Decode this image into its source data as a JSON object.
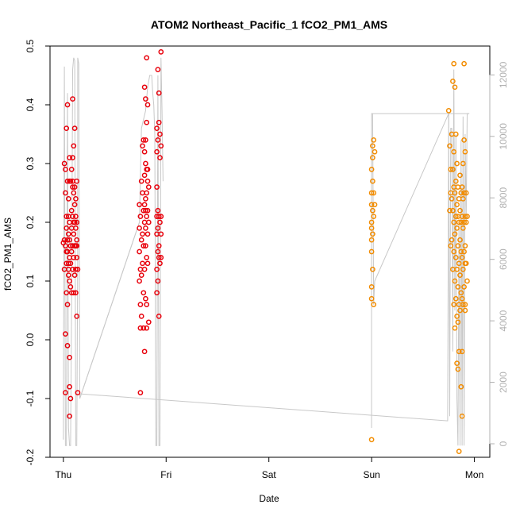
{
  "chart_data": {
    "type": "scatter",
    "title": "ATOM2 Northeast_Pacific_1 fCO2_PM1_AMS",
    "xlabel": "Date",
    "ylabel": "fCO2_PM1_AMS",
    "x_tick_labels": [
      "Thu",
      "Fri",
      "Sat",
      "Sun",
      "Mon"
    ],
    "x_tick_days": [
      0,
      1,
      2,
      3,
      4
    ],
    "xlim_days": [
      -0.13,
      4.15
    ],
    "ylim": [
      -0.2,
      0.5
    ],
    "y_ticks": [
      -0.2,
      -0.1,
      0.0,
      0.1,
      0.2,
      0.3,
      0.4,
      0.5
    ],
    "y_tick_labels": [
      "-0.2",
      "-0.1",
      "0.0",
      "0.1",
      "0.2",
      "0.3",
      "0.4",
      "0.5"
    ],
    "y2lim": [
      0,
      12500
    ],
    "y2_ticks": [
      0,
      2000,
      4000,
      6000,
      8000,
      10000,
      12000
    ],
    "y2_tick_labels": [
      "0",
      "2000",
      "4000",
      "6000",
      "8000",
      "10000",
      "12000"
    ],
    "grid": false,
    "colors": {
      "red": "#e8000b",
      "orange": "#f28c00",
      "line": "#c8c8c8",
      "axis": "#000000",
      "axis2": "#b0b0b0"
    },
    "series_red": {
      "points": [
        [
          0.0,
          0.165
        ],
        [
          0.01,
          0.3
        ],
        [
          0.01,
          0.17
        ],
        [
          0.01,
          0.12
        ],
        [
          0.02,
          0.25
        ],
        [
          0.02,
          0.16
        ],
        [
          0.02,
          0.29
        ],
        [
          0.02,
          0.01
        ],
        [
          0.02,
          -0.09
        ],
        [
          0.03,
          0.36
        ],
        [
          0.03,
          0.21
        ],
        [
          0.03,
          0.19
        ],
        [
          0.03,
          0.15
        ],
        [
          0.03,
          0.13
        ],
        [
          0.03,
          0.08
        ],
        [
          0.04,
          0.4
        ],
        [
          0.04,
          0.27
        ],
        [
          0.04,
          0.17
        ],
        [
          0.04,
          0.15
        ],
        [
          0.04,
          0.06
        ],
        [
          0.04,
          -0.01
        ],
        [
          0.05,
          0.24
        ],
        [
          0.05,
          0.21
        ],
        [
          0.05,
          0.18
        ],
        [
          0.05,
          0.13
        ],
        [
          0.05,
          0.12
        ],
        [
          0.05,
          0.11
        ],
        [
          0.06,
          0.31
        ],
        [
          0.06,
          0.27
        ],
        [
          0.06,
          0.2
        ],
        [
          0.06,
          0.17
        ],
        [
          0.06,
          0.14
        ],
        [
          0.06,
          0.1
        ],
        [
          0.06,
          -0.03
        ],
        [
          0.06,
          -0.08
        ],
        [
          0.06,
          -0.13
        ],
        [
          0.07,
          0.27
        ],
        [
          0.07,
          0.16
        ],
        [
          0.07,
          0.13
        ],
        [
          0.07,
          0.09
        ],
        [
          0.07,
          -0.1
        ],
        [
          0.08,
          0.29
        ],
        [
          0.08,
          0.22
        ],
        [
          0.08,
          0.19
        ],
        [
          0.08,
          0.15
        ],
        [
          0.08,
          0.08
        ],
        [
          0.09,
          0.41
        ],
        [
          0.09,
          0.31
        ],
        [
          0.09,
          0.27
        ],
        [
          0.09,
          0.26
        ],
        [
          0.09,
          0.21
        ],
        [
          0.09,
          0.16
        ],
        [
          0.09,
          0.12
        ],
        [
          0.1,
          0.33
        ],
        [
          0.1,
          0.25
        ],
        [
          0.1,
          0.2
        ],
        [
          0.1,
          0.18
        ],
        [
          0.1,
          0.14
        ],
        [
          0.1,
          0.08
        ],
        [
          0.11,
          0.36
        ],
        [
          0.11,
          0.26
        ],
        [
          0.11,
          0.23
        ],
        [
          0.11,
          0.2
        ],
        [
          0.11,
          0.16
        ],
        [
          0.11,
          0.11
        ],
        [
          0.12,
          0.24
        ],
        [
          0.12,
          0.21
        ],
        [
          0.12,
          0.19
        ],
        [
          0.12,
          0.16
        ],
        [
          0.12,
          0.12
        ],
        [
          0.12,
          0.08
        ],
        [
          0.13,
          0.27
        ],
        [
          0.13,
          0.2
        ],
        [
          0.13,
          0.17
        ],
        [
          0.13,
          0.16
        ],
        [
          0.13,
          0.14
        ],
        [
          0.13,
          0.04
        ],
        [
          0.14,
          0.12
        ],
        [
          0.14,
          -0.09
        ],
        [
          0.74,
          0.23
        ],
        [
          0.74,
          0.19
        ],
        [
          0.74,
          0.15
        ],
        [
          0.74,
          0.1
        ],
        [
          0.75,
          0.21
        ],
        [
          0.75,
          0.12
        ],
        [
          0.75,
          0.06
        ],
        [
          0.75,
          0.02
        ],
        [
          0.75,
          -0.09
        ],
        [
          0.76,
          0.27
        ],
        [
          0.76,
          0.17
        ],
        [
          0.76,
          0.11
        ],
        [
          0.76,
          0.04
        ],
        [
          0.77,
          0.33
        ],
        [
          0.77,
          0.25
        ],
        [
          0.77,
          0.18
        ],
        [
          0.77,
          0.13
        ],
        [
          0.78,
          0.34
        ],
        [
          0.78,
          0.22
        ],
        [
          0.78,
          0.16
        ],
        [
          0.78,
          0.08
        ],
        [
          0.78,
          0.02
        ],
        [
          0.79,
          0.43
        ],
        [
          0.79,
          0.32
        ],
        [
          0.79,
          0.28
        ],
        [
          0.79,
          0.23
        ],
        [
          0.79,
          0.2
        ],
        [
          0.79,
          0.12
        ],
        [
          0.79,
          -0.02
        ],
        [
          0.8,
          0.41
        ],
        [
          0.8,
          0.34
        ],
        [
          0.8,
          0.3
        ],
        [
          0.8,
          0.24
        ],
        [
          0.8,
          0.22
        ],
        [
          0.8,
          0.19
        ],
        [
          0.8,
          0.16
        ],
        [
          0.8,
          0.07
        ],
        [
          0.81,
          0.48
        ],
        [
          0.81,
          0.37
        ],
        [
          0.81,
          0.29
        ],
        [
          0.81,
          0.25
        ],
        [
          0.81,
          0.21
        ],
        [
          0.81,
          0.14
        ],
        [
          0.81,
          0.06
        ],
        [
          0.81,
          0.02
        ],
        [
          0.82,
          0.4
        ],
        [
          0.82,
          0.29
        ],
        [
          0.82,
          0.27
        ],
        [
          0.82,
          0.22
        ],
        [
          0.82,
          0.18
        ],
        [
          0.82,
          0.13
        ],
        [
          0.83,
          0.26
        ],
        [
          0.83,
          0.2
        ],
        [
          0.83,
          0.03
        ],
        [
          0.91,
          0.36
        ],
        [
          0.91,
          0.32
        ],
        [
          0.91,
          0.26
        ],
        [
          0.91,
          0.21
        ],
        [
          0.91,
          0.18
        ],
        [
          0.91,
          0.12
        ],
        [
          0.91,
          0.08
        ],
        [
          0.92,
          0.46
        ],
        [
          0.92,
          0.34
        ],
        [
          0.92,
          0.22
        ],
        [
          0.92,
          0.19
        ],
        [
          0.92,
          0.15
        ],
        [
          0.92,
          0.1
        ],
        [
          0.93,
          0.42
        ],
        [
          0.93,
          0.37
        ],
        [
          0.93,
          0.21
        ],
        [
          0.93,
          0.16
        ],
        [
          0.93,
          0.14
        ],
        [
          0.93,
          0.04
        ],
        [
          0.94,
          0.35
        ],
        [
          0.94,
          0.31
        ],
        [
          0.94,
          0.2
        ],
        [
          0.94,
          0.13
        ],
        [
          0.95,
          0.49
        ],
        [
          0.95,
          0.33
        ],
        [
          0.95,
          0.21
        ],
        [
          0.95,
          0.18
        ],
        [
          0.95,
          0.14
        ]
      ],
      "line": [
        [
          0.0,
          -0.17
        ],
        [
          0.01,
          0.465
        ],
        [
          0.01,
          0.465
        ],
        [
          0.02,
          -0.18
        ],
        [
          0.03,
          -0.18
        ],
        [
          0.04,
          0.42
        ],
        [
          0.05,
          -0.15
        ],
        [
          0.06,
          -0.18
        ],
        [
          0.07,
          -0.18
        ],
        [
          0.08,
          0.06
        ],
        [
          0.09,
          0.46
        ],
        [
          0.1,
          0.48
        ],
        [
          0.11,
          0.475
        ],
        [
          0.12,
          -0.18
        ],
        [
          0.13,
          -0.18
        ],
        [
          0.14,
          0.14
        ],
        [
          0.14,
          0.48
        ],
        [
          0.15,
          0.47
        ],
        [
          0.16,
          -0.1
        ],
        [
          0.74,
          0.2
        ],
        [
          0.76,
          0.36
        ],
        [
          0.8,
          0.39
        ],
        [
          0.82,
          0.43
        ],
        [
          0.84,
          0.45
        ],
        [
          0.86,
          0.45
        ],
        [
          0.87,
          0.42
        ],
        [
          0.88,
          0.4
        ],
        [
          0.89,
          0.35
        ],
        [
          0.9,
          -0.18
        ],
        [
          0.91,
          -0.18
        ],
        [
          0.92,
          0.45
        ],
        [
          0.93,
          -0.18
        ],
        [
          0.94,
          -0.18
        ],
        [
          0.95,
          0.48
        ],
        [
          0.96,
          0.39
        ],
        [
          0.97,
          0.27
        ]
      ]
    },
    "series_orange": {
      "points": [
        [
          3.0,
          0.29
        ],
        [
          3.0,
          0.25
        ],
        [
          3.0,
          0.23
        ],
        [
          3.0,
          0.2
        ],
        [
          3.0,
          0.19
        ],
        [
          3.0,
          0.17
        ],
        [
          3.0,
          0.15
        ],
        [
          3.0,
          0.09
        ],
        [
          3.0,
          0.07
        ],
        [
          3.0,
          -0.17
        ],
        [
          3.01,
          0.33
        ],
        [
          3.01,
          0.31
        ],
        [
          3.01,
          0.27
        ],
        [
          3.01,
          0.22
        ],
        [
          3.01,
          0.18
        ],
        [
          3.01,
          0.12
        ],
        [
          3.02,
          0.34
        ],
        [
          3.02,
          0.25
        ],
        [
          3.02,
          0.21
        ],
        [
          3.02,
          0.06
        ],
        [
          3.03,
          0.32
        ],
        [
          3.03,
          0.23
        ],
        [
          3.75,
          0.39
        ],
        [
          3.76,
          0.33
        ],
        [
          3.76,
          0.22
        ],
        [
          3.77,
          0.29
        ],
        [
          3.77,
          0.25
        ],
        [
          3.77,
          0.16
        ],
        [
          3.78,
          0.35
        ],
        [
          3.78,
          0.24
        ],
        [
          3.78,
          0.17
        ],
        [
          3.79,
          0.44
        ],
        [
          3.79,
          0.29
        ],
        [
          3.79,
          0.22
        ],
        [
          3.79,
          0.12
        ],
        [
          3.8,
          0.47
        ],
        [
          3.8,
          0.32
        ],
        [
          3.8,
          0.26
        ],
        [
          3.8,
          0.2
        ],
        [
          3.8,
          0.15
        ],
        [
          3.8,
          0.06
        ],
        [
          3.81,
          0.43
        ],
        [
          3.81,
          0.25
        ],
        [
          3.81,
          0.18
        ],
        [
          3.81,
          0.1
        ],
        [
          3.81,
          0.02
        ],
        [
          3.82,
          0.35
        ],
        [
          3.82,
          0.27
        ],
        [
          3.82,
          0.21
        ],
        [
          3.82,
          0.14
        ],
        [
          3.82,
          0.07
        ],
        [
          3.83,
          0.3
        ],
        [
          3.83,
          0.23
        ],
        [
          3.83,
          0.19
        ],
        [
          3.83,
          0.12
        ],
        [
          3.83,
          0.04
        ],
        [
          3.83,
          -0.04
        ],
        [
          3.84,
          0.26
        ],
        [
          3.84,
          0.21
        ],
        [
          3.84,
          0.16
        ],
        [
          3.84,
          0.09
        ],
        [
          3.84,
          0.03
        ],
        [
          3.84,
          -0.05
        ],
        [
          3.85,
          0.24
        ],
        [
          3.85,
          0.2
        ],
        [
          3.85,
          0.13
        ],
        [
          3.85,
          0.06
        ],
        [
          3.85,
          -0.02
        ],
        [
          3.85,
          -0.19
        ],
        [
          3.86,
          0.28
        ],
        [
          3.86,
          0.22
        ],
        [
          3.86,
          0.17
        ],
        [
          3.86,
          0.11
        ],
        [
          3.86,
          0.05
        ],
        [
          3.87,
          0.25
        ],
        [
          3.87,
          0.2
        ],
        [
          3.87,
          0.15
        ],
        [
          3.87,
          0.08
        ],
        [
          3.87,
          -0.08
        ],
        [
          3.88,
          0.26
        ],
        [
          3.88,
          0.21
        ],
        [
          3.88,
          0.14
        ],
        [
          3.88,
          0.07
        ],
        [
          3.88,
          -0.02
        ],
        [
          3.88,
          -0.13
        ],
        [
          3.89,
          0.3
        ],
        [
          3.89,
          0.24
        ],
        [
          3.89,
          0.19
        ],
        [
          3.89,
          0.12
        ],
        [
          3.89,
          0.06
        ],
        [
          3.9,
          0.47
        ],
        [
          3.9,
          0.34
        ],
        [
          3.9,
          0.25
        ],
        [
          3.9,
          0.2
        ],
        [
          3.9,
          0.15
        ],
        [
          3.9,
          0.09
        ],
        [
          3.91,
          0.32
        ],
        [
          3.91,
          0.21
        ],
        [
          3.91,
          0.16
        ],
        [
          3.91,
          0.13
        ],
        [
          3.91,
          0.06
        ],
        [
          3.91,
          0.05
        ],
        [
          3.92,
          0.25
        ],
        [
          3.92,
          0.2
        ],
        [
          3.92,
          0.13
        ],
        [
          3.93,
          0.21
        ],
        [
          3.93,
          0.1
        ]
      ],
      "line": [
        [
          3.0,
          -0.15
        ],
        [
          3.0,
          0.385
        ],
        [
          3.01,
          0.385
        ],
        [
          3.02,
          0.06
        ],
        [
          3.03,
          0.1
        ],
        [
          3.75,
          0.385
        ],
        [
          3.76,
          -0.13
        ],
        [
          3.77,
          0.36
        ],
        [
          3.78,
          0.36
        ],
        [
          3.79,
          -0.02
        ],
        [
          3.8,
          0.46
        ],
        [
          3.81,
          0.05
        ],
        [
          3.82,
          0.35
        ],
        [
          3.83,
          -0.1
        ],
        [
          3.84,
          -0.18
        ],
        [
          3.85,
          0.2
        ],
        [
          3.86,
          -0.18
        ],
        [
          3.87,
          0.34
        ],
        [
          3.88,
          -0.18
        ],
        [
          3.89,
          0.38
        ],
        [
          3.9,
          -0.18
        ],
        [
          3.91,
          0.35
        ],
        [
          3.92,
          0.2
        ],
        [
          3.93,
          0.385
        ],
        [
          3.95,
          0.385
        ]
      ]
    }
  }
}
